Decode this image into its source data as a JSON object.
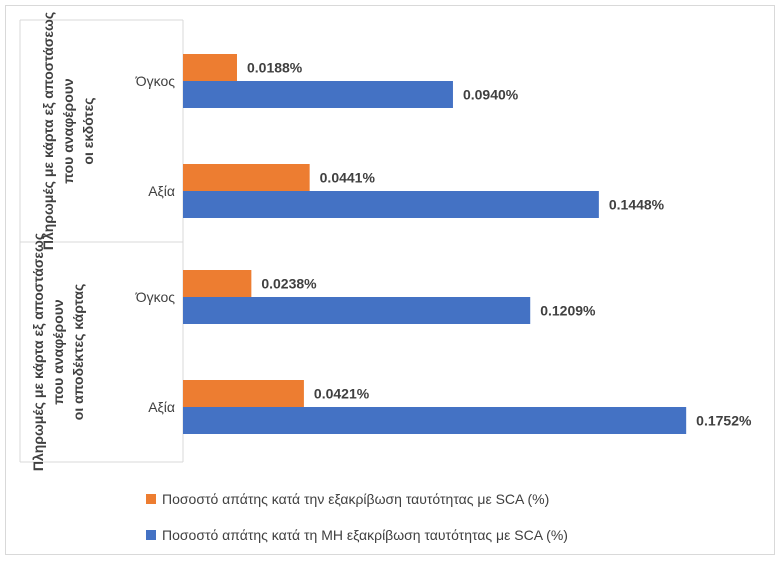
{
  "chart_data": {
    "type": "bar",
    "orientation": "horizontal",
    "groups": [
      {
        "label": "Πληρωμές με κάρτα εξ αποστάσεως που αναφέρουν οι εκδότες",
        "categories": [
          "Όγκος",
          "Αξία"
        ]
      },
      {
        "label": "Πληρωμές με κάρτα εξ αποστάσεως που αναφέρουν οι αποδέκτες κάρτας",
        "categories": [
          "Όγκος",
          "Αξία"
        ]
      }
    ],
    "series": [
      {
        "name": "Ποσοστό απάτης κατά την εξακρίβωση ταυτότητας με SCA (%)",
        "color": "#ED7D31",
        "values": [
          0.0188,
          0.0441,
          0.0238,
          0.0421
        ],
        "labels": [
          "0.0188%",
          "0.0441%",
          "0.0238%",
          "0.0421%"
        ]
      },
      {
        "name": "Ποσοστό απάτης κατά τη ΜΗ εξακρίβωση ταυτότητας με SCA (%)",
        "color": "#4472C4",
        "values": [
          0.094,
          0.1448,
          0.1209,
          0.1752
        ],
        "labels": [
          "0.0940%",
          "0.1448%",
          "0.1209%",
          "0.1752%"
        ]
      }
    ],
    "xlim": [
      0,
      0.2
    ],
    "grid": false,
    "legend_position": "bottom"
  }
}
